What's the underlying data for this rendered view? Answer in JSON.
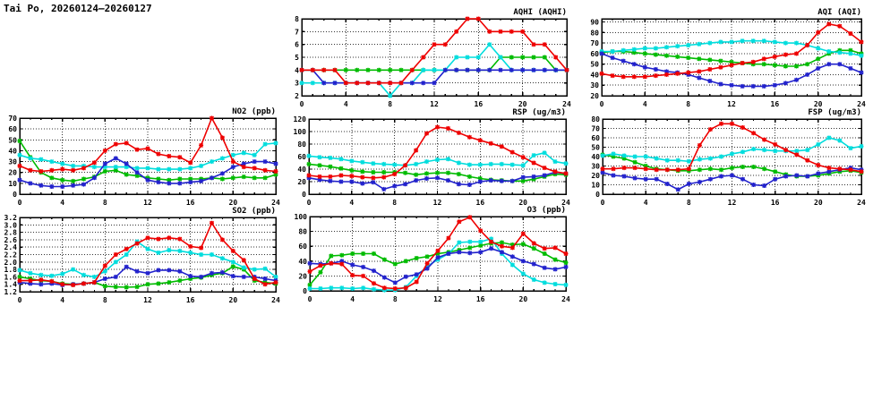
{
  "title": "Tai Po, 20260124–20260127",
  "chart_data": [
    {
      "id": "aqhi",
      "type": "line",
      "title": "AQHI (AQHI)",
      "xlabel": "",
      "ylabel": "",
      "x_start": 0,
      "x_step": 1,
      "x_ticks": [
        0,
        4,
        8,
        12,
        16,
        20,
        24
      ],
      "xlim": [
        0,
        24
      ],
      "ylim": [
        2,
        8
      ],
      "y_ticks": [
        2,
        3,
        4,
        5,
        6,
        7,
        8
      ],
      "grid": true,
      "legend": "none",
      "series": [
        {
          "name": "green",
          "color": "#00bb00",
          "values": [
            4,
            4,
            4,
            4,
            4,
            4,
            4,
            4,
            4,
            4,
            4,
            4,
            4,
            4,
            4,
            4,
            4,
            4,
            5,
            5,
            5,
            5,
            5,
            4,
            4
          ]
        },
        {
          "name": "cyan",
          "color": "#00dddd",
          "values": [
            3,
            3,
            3,
            3,
            3,
            3,
            3,
            3,
            2,
            3,
            3,
            4,
            4,
            4,
            5,
            5,
            5,
            6,
            5,
            4,
            4,
            4,
            4,
            4,
            4
          ]
        },
        {
          "name": "blue",
          "color": "#2222cc",
          "values": [
            4,
            4,
            3,
            3,
            3,
            3,
            3,
            3,
            3,
            3,
            3,
            3,
            3,
            4,
            4,
            4,
            4,
            4,
            4,
            4,
            4,
            4,
            4,
            4,
            4
          ]
        },
        {
          "name": "red",
          "color": "#ee0000",
          "values": [
            4,
            4,
            4,
            4,
            3,
            3,
            3,
            3,
            3,
            3,
            4,
            5,
            6,
            6,
            7,
            8,
            8,
            7,
            7,
            7,
            7,
            6,
            6,
            5,
            4
          ]
        }
      ]
    },
    {
      "id": "aqi",
      "type": "line",
      "title": "AQI (AQI)",
      "xlabel": "",
      "ylabel": "",
      "x_start": 0,
      "x_step": 1,
      "x_ticks": [
        0,
        4,
        8,
        12,
        16,
        20,
        24
      ],
      "xlim": [
        0,
        24
      ],
      "ylim": [
        20,
        93
      ],
      "y_ticks": [
        20,
        30,
        40,
        50,
        60,
        70,
        80,
        90
      ],
      "grid": true,
      "legend": "none",
      "series": [
        {
          "name": "green",
          "color": "#00bb00",
          "values": [
            61,
            62,
            62,
            61,
            60,
            59,
            58,
            57,
            56,
            55,
            54,
            53,
            52,
            51,
            50,
            50,
            49,
            48,
            48,
            50,
            55,
            60,
            63,
            63,
            60
          ]
        },
        {
          "name": "cyan",
          "color": "#00dddd",
          "values": [
            62,
            62,
            63,
            64,
            65,
            65,
            66,
            67,
            68,
            69,
            70,
            71,
            71,
            72,
            72,
            72,
            71,
            70,
            70,
            68,
            65,
            62,
            61,
            60,
            58
          ]
        },
        {
          "name": "blue",
          "color": "#2222cc",
          "values": [
            60,
            56,
            53,
            50,
            47,
            45,
            43,
            42,
            40,
            37,
            34,
            31,
            30,
            29,
            29,
            29,
            30,
            32,
            35,
            40,
            46,
            50,
            50,
            46,
            42
          ]
        },
        {
          "name": "red",
          "color": "#ee0000",
          "values": [
            41,
            39,
            38,
            38,
            38,
            39,
            40,
            41,
            42,
            43,
            45,
            47,
            49,
            51,
            52,
            55,
            57,
            59,
            60,
            68,
            80,
            88,
            86,
            79,
            71
          ]
        }
      ]
    },
    {
      "id": "no2",
      "type": "line",
      "title": "NO2 (ppb)",
      "xlabel": "",
      "ylabel": "",
      "x_start": 0,
      "x_step": 1,
      "x_ticks": [
        0,
        4,
        8,
        12,
        16,
        20,
        24
      ],
      "xlim": [
        0,
        24
      ],
      "ylim": [
        0,
        70
      ],
      "y_ticks": [
        0,
        10,
        20,
        30,
        40,
        50,
        60,
        70
      ],
      "grid": true,
      "legend": "none",
      "series": [
        {
          "name": "green",
          "color": "#00bb00",
          "values": [
            49,
            34,
            20,
            15,
            13,
            12,
            14,
            16,
            21,
            22,
            18,
            17,
            15,
            14,
            13,
            14,
            14,
            14,
            15,
            14,
            15,
            16,
            15,
            15,
            18
          ]
        },
        {
          "name": "cyan",
          "color": "#00dddd",
          "values": [
            36,
            33,
            32,
            30,
            28,
            26,
            26,
            25,
            25,
            25,
            25,
            24,
            24,
            23,
            23,
            23,
            24,
            26,
            30,
            33,
            36,
            38,
            36,
            46,
            47
          ]
        },
        {
          "name": "blue",
          "color": "#2222cc",
          "values": [
            13,
            10,
            8,
            7,
            7,
            8,
            9,
            15,
            28,
            33,
            28,
            20,
            13,
            11,
            10,
            10,
            11,
            12,
            15,
            19,
            25,
            28,
            30,
            30,
            28
          ]
        },
        {
          "name": "red",
          "color": "#ee0000",
          "values": [
            26,
            22,
            21,
            22,
            23,
            22,
            24,
            29,
            40,
            46,
            47,
            41,
            42,
            37,
            35,
            34,
            29,
            45,
            70,
            52,
            30,
            25,
            24,
            22,
            21
          ]
        }
      ]
    },
    {
      "id": "rsp",
      "type": "line",
      "title": "RSP (ug/m3)",
      "xlabel": "",
      "ylabel": "",
      "x_start": 0,
      "x_step": 1,
      "x_ticks": [
        0,
        4,
        8,
        12,
        16,
        20,
        24
      ],
      "xlim": [
        0,
        24
      ],
      "ylim": [
        0,
        120
      ],
      "y_ticks": [
        0,
        20,
        40,
        60,
        80,
        100,
        120
      ],
      "grid": true,
      "legend": "none",
      "series": [
        {
          "name": "green",
          "color": "#00bb00",
          "values": [
            48,
            46,
            44,
            41,
            38,
            36,
            35,
            35,
            35,
            34,
            31,
            33,
            34,
            34,
            32,
            28,
            25,
            23,
            22,
            21,
            21,
            24,
            28,
            32,
            31
          ]
        },
        {
          "name": "cyan",
          "color": "#00dddd",
          "values": [
            61,
            59,
            58,
            56,
            53,
            51,
            49,
            48,
            47,
            46,
            48,
            52,
            55,
            56,
            50,
            47,
            47,
            48,
            48,
            47,
            46,
            62,
            66,
            52,
            49
          ]
        },
        {
          "name": "blue",
          "color": "#2222cc",
          "values": [
            26,
            23,
            21,
            20,
            20,
            17,
            19,
            8,
            13,
            16,
            22,
            25,
            26,
            22,
            16,
            15,
            20,
            22,
            21,
            21,
            27,
            28,
            30,
            35,
            33
          ]
        },
        {
          "name": "red",
          "color": "#ee0000",
          "values": [
            30,
            28,
            28,
            30,
            29,
            27,
            26,
            27,
            32,
            46,
            70,
            97,
            107,
            105,
            98,
            91,
            86,
            81,
            76,
            67,
            59,
            50,
            42,
            36,
            33
          ]
        }
      ]
    },
    {
      "id": "fsp",
      "type": "line",
      "title": "FSP (ug/m3)",
      "xlabel": "",
      "ylabel": "",
      "x_start": 0,
      "x_step": 1,
      "x_ticks": [
        0,
        4,
        8,
        12,
        16,
        20,
        24
      ],
      "xlim": [
        0,
        24
      ],
      "ylim": [
        0,
        80
      ],
      "y_ticks": [
        0,
        10,
        20,
        30,
        40,
        50,
        60,
        70,
        80
      ],
      "grid": true,
      "legend": "none",
      "series": [
        {
          "name": "green",
          "color": "#00bb00",
          "values": [
            42,
            40,
            38,
            34,
            30,
            27,
            26,
            25,
            25,
            26,
            27,
            26,
            28,
            29,
            29,
            27,
            24,
            21,
            19,
            19,
            20,
            22,
            24,
            25,
            23
          ]
        },
        {
          "name": "cyan",
          "color": "#00dddd",
          "values": [
            41,
            43,
            41,
            40,
            40,
            38,
            36,
            36,
            35,
            37,
            38,
            40,
            43,
            45,
            48,
            47,
            46,
            46,
            46,
            47,
            53,
            60,
            57,
            49,
            51
          ]
        },
        {
          "name": "blue",
          "color": "#2222cc",
          "values": [
            23,
            20,
            19,
            17,
            16,
            16,
            11,
            5,
            11,
            13,
            16,
            19,
            20,
            16,
            10,
            9,
            16,
            19,
            20,
            19,
            22,
            24,
            26,
            28,
            26
          ]
        },
        {
          "name": "red",
          "color": "#ee0000",
          "values": [
            27,
            27,
            28,
            28,
            27,
            26,
            26,
            26,
            27,
            52,
            69,
            75,
            75,
            71,
            65,
            58,
            53,
            47,
            42,
            36,
            31,
            28,
            27,
            26,
            24
          ]
        }
      ]
    },
    {
      "id": "so2",
      "type": "line",
      "title": "SO2 (ppb)",
      "xlabel": "",
      "ylabel": "",
      "x_start": 0,
      "x_step": 1,
      "x_ticks": [
        0,
        4,
        8,
        12,
        16,
        20,
        24
      ],
      "xlim": [
        0,
        24
      ],
      "ylim": [
        1.2,
        3.2
      ],
      "y_ticks": [
        1.2,
        1.4,
        1.6,
        1.8,
        2.0,
        2.2,
        2.4,
        2.6,
        2.8,
        3.0,
        3.2
      ],
      "y_tick_labels": [
        "1.2",
        "1.4",
        "1.6",
        "1.8",
        "2.0",
        "2.2",
        "2.4",
        "2.6",
        "2.8",
        "3.0",
        "3.2"
      ],
      "grid": true,
      "legend": "none",
      "series": [
        {
          "name": "green",
          "color": "#00bb00",
          "values": [
            1.6,
            1.55,
            1.5,
            1.48,
            1.42,
            1.4,
            1.42,
            1.45,
            1.35,
            1.33,
            1.32,
            1.33,
            1.4,
            1.42,
            1.45,
            1.5,
            1.55,
            1.58,
            1.65,
            1.7,
            1.88,
            1.8,
            1.5,
            1.45,
            1.42
          ]
        },
        {
          "name": "cyan",
          "color": "#00dddd",
          "values": [
            1.78,
            1.7,
            1.65,
            1.63,
            1.68,
            1.8,
            1.65,
            1.6,
            1.75,
            2.0,
            2.2,
            2.55,
            2.35,
            2.25,
            2.32,
            2.3,
            2.25,
            2.2,
            2.2,
            2.1,
            2.0,
            1.85,
            1.8,
            1.82,
            1.6
          ]
        },
        {
          "name": "blue",
          "color": "#2222cc",
          "values": [
            1.45,
            1.42,
            1.4,
            1.42,
            1.38,
            1.4,
            1.42,
            1.45,
            1.55,
            1.6,
            1.87,
            1.75,
            1.7,
            1.78,
            1.78,
            1.75,
            1.62,
            1.6,
            1.7,
            1.72,
            1.62,
            1.6,
            1.6,
            1.55,
            1.5
          ]
        },
        {
          "name": "red",
          "color": "#ee0000",
          "values": [
            1.5,
            1.5,
            1.52,
            1.48,
            1.4,
            1.38,
            1.42,
            1.45,
            1.9,
            2.2,
            2.35,
            2.5,
            2.65,
            2.62,
            2.65,
            2.62,
            2.42,
            2.38,
            3.05,
            2.6,
            2.3,
            2.05,
            1.55,
            1.4,
            1.45
          ]
        }
      ]
    },
    {
      "id": "o3",
      "type": "line",
      "title": "O3 (ppb)",
      "xlabel": "",
      "ylabel": "",
      "x_start": 0,
      "x_step": 1,
      "x_ticks": [
        0,
        4,
        8,
        12,
        16,
        20,
        24
      ],
      "xlim": [
        0,
        24
      ],
      "ylim": [
        0,
        100
      ],
      "y_ticks": [
        0,
        20,
        40,
        60,
        80,
        100
      ],
      "grid": true,
      "legend": "none",
      "series": [
        {
          "name": "green",
          "color": "#00bb00",
          "values": [
            8,
            25,
            47,
            48,
            50,
            50,
            50,
            42,
            36,
            40,
            44,
            46,
            50,
            52,
            55,
            58,
            61,
            64,
            65,
            62,
            63,
            57,
            50,
            42,
            38
          ]
        },
        {
          "name": "cyan",
          "color": "#00dddd",
          "values": [
            3,
            3,
            4,
            4,
            3,
            4,
            2,
            1,
            1,
            5,
            20,
            33,
            42,
            50,
            65,
            66,
            66,
            70,
            50,
            35,
            23,
            15,
            11,
            9,
            8
          ]
        },
        {
          "name": "blue",
          "color": "#2222cc",
          "values": [
            37,
            36,
            37,
            40,
            35,
            32,
            27,
            18,
            11,
            19,
            22,
            30,
            45,
            50,
            52,
            51,
            52,
            57,
            52,
            46,
            40,
            36,
            31,
            29,
            32
          ]
        },
        {
          "name": "red",
          "color": "#ee0000",
          "values": [
            26,
            34,
            37,
            36,
            21,
            20,
            10,
            4,
            3,
            4,
            12,
            37,
            54,
            71,
            93,
            99,
            81,
            66,
            60,
            58,
            77,
            64,
            57,
            58,
            50
          ]
        }
      ]
    }
  ]
}
